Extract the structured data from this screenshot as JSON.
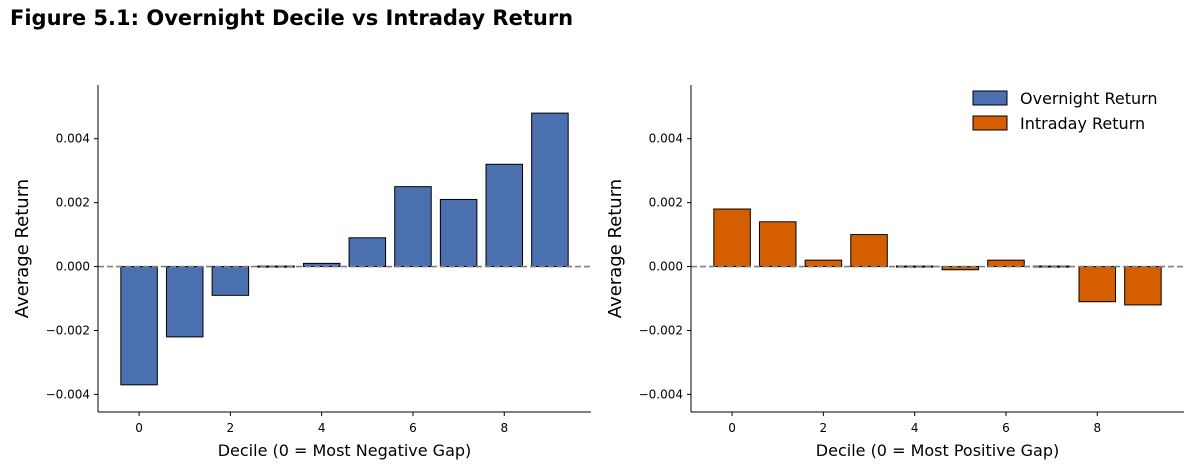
{
  "figure_title": "Figure 5.1:  Overnight Decile vs Intraday Return",
  "colors": {
    "overnight": "#4a70b0",
    "intraday": "#d55e00",
    "zero_line": "#808080",
    "bar_edge": "#000000"
  },
  "legend": {
    "placement": "upper-right",
    "items": [
      "Overnight Return",
      "Intraday Return"
    ]
  },
  "chart_data": [
    {
      "type": "bar",
      "title": "",
      "xlabel": "Decile (0 = Most Negative Gap)",
      "ylabel": "Average Return",
      "x": [
        0,
        1,
        2,
        3,
        4,
        5,
        6,
        7,
        8,
        9
      ],
      "values": [
        -0.0037,
        -0.0022,
        -0.0009,
        0.0,
        0.0001,
        0.0009,
        0.0025,
        0.0021,
        0.0032,
        0.0048
      ],
      "series_name": "Overnight Return",
      "color": "#4a70b0",
      "xlim": [
        -0.9,
        9.9
      ],
      "ylim": [
        -0.00455,
        0.00568
      ],
      "xticks": [
        "0",
        "2",
        "4",
        "6",
        "8"
      ],
      "yticks": [
        "−0.004",
        "−0.002",
        "0.000",
        "0.002",
        "0.004"
      ],
      "zero_line": "dashed",
      "grid": false,
      "legend": false
    },
    {
      "type": "bar",
      "title": "",
      "xlabel": "Decile (0 = Most Positive Gap)",
      "ylabel": "Average Return",
      "x": [
        0,
        1,
        2,
        3,
        4,
        5,
        6,
        7,
        8,
        9
      ],
      "values": [
        0.0018,
        0.0014,
        0.0002,
        0.001,
        0.0,
        -0.0001,
        0.0002,
        0.0,
        -0.0011,
        -0.0012
      ],
      "series_name": "Intraday Return",
      "color": "#d55e00",
      "xlim": [
        -0.9,
        9.9
      ],
      "ylim": [
        -0.00455,
        0.00568
      ],
      "xticks": [
        "0",
        "2",
        "4",
        "6",
        "8"
      ],
      "yticks": [
        "−0.004",
        "−0.002",
        "0.000",
        "0.002",
        "0.004"
      ],
      "zero_line": "dashed",
      "grid": false,
      "legend": true
    }
  ]
}
